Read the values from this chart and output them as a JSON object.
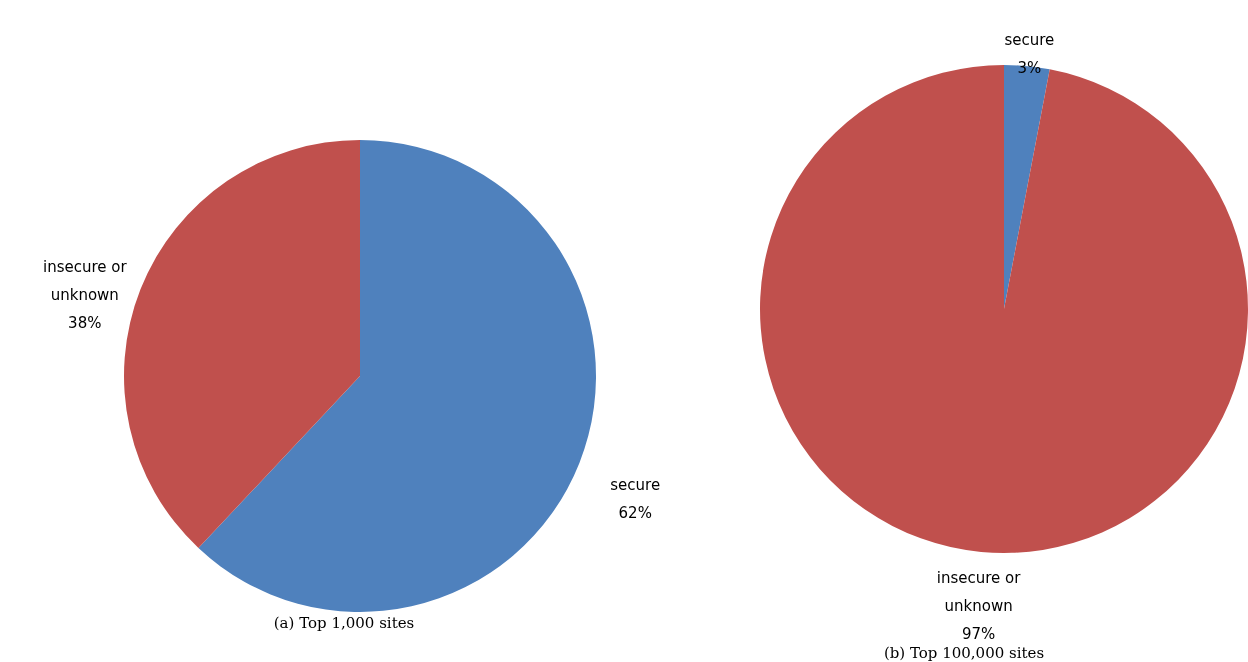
{
  "chart_data": [
    {
      "type": "pie",
      "title": "(a) Top 1,000 sites",
      "categories": [
        "secure",
        "insecure or unknown"
      ],
      "values": [
        62,
        38
      ],
      "colors": [
        "#4f81bd",
        "#c0504d"
      ],
      "value_labels": [
        "62%",
        "38%"
      ]
    },
    {
      "type": "pie",
      "title": "(b) Top 100,000 sites",
      "categories": [
        "secure",
        "insecure or unknown"
      ],
      "values": [
        3,
        97
      ],
      "colors": [
        "#4f81bd",
        "#c0504d"
      ],
      "value_labels": [
        "3%",
        "97%"
      ]
    }
  ]
}
